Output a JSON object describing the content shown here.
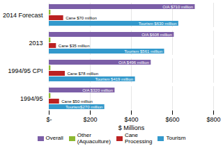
{
  "chart_data": {
    "type": "bar",
    "orientation": "horizontal",
    "categories": [
      "1994/95",
      "1994/95 CPI",
      "2013",
      "2014 Forecast"
    ],
    "xlabel": "$ Millions",
    "series": [
      {
        "name": "Overall",
        "color": "#7B5EA7",
        "values": [
          320,
          496,
          608,
          710
        ],
        "value_labels": [
          "O/A $320 million",
          "O/A $496 million",
          "O/A $608 million",
          "O/A $710 million"
        ]
      },
      {
        "name": "Other\n(Aquaculture)",
        "color": "#8db832",
        "values": [
          8,
          8,
          8,
          8
        ]
      },
      {
        "name": "Cane\nProcessing",
        "color": "#bb2222",
        "values": [
          50,
          78,
          35,
          70
        ],
        "value_labels": [
          "Cane $50 million",
          "Cane $78 million",
          "Cane $35 million",
          "Cane $70 million"
        ]
      },
      {
        "name": "Tourism",
        "color": "#3399cc",
        "values": [
          270,
          419,
          561,
          630
        ],
        "value_labels": [
          "Tourism$270 million",
          "Tourism $419 million",
          "Tourism $561 million",
          "Tourism $630 million"
        ]
      }
    ],
    "xlim": [
      0,
      800
    ],
    "xticks": [
      {
        "value": 0,
        "label": "$-"
      },
      {
        "value": 200,
        "label": "$200"
      },
      {
        "value": 400,
        "label": "$400"
      },
      {
        "value": 600,
        "label": "$600"
      },
      {
        "value": 800,
        "label": "$800"
      }
    ],
    "grid": true,
    "data_labels": true,
    "legend": "bottom"
  }
}
